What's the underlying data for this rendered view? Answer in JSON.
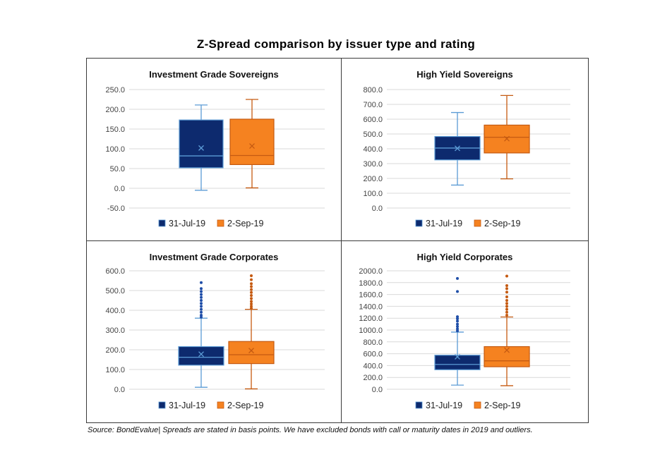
{
  "title": "Z-Spread comparison by issuer type and rating",
  "source_note": "Source: BondEvalue| Spreads are stated in basis points. We have excluded bonds with call or maturity dates in 2019 and outliers.",
  "colors": {
    "series1_fill": "#0d2a6e",
    "series1_line": "#5b9bd5",
    "series2_fill": "#f58220",
    "series2_line": "#c55a11"
  },
  "chart_data": [
    {
      "type": "box",
      "title": "Investment Grade Sovereigns",
      "ylim": [
        -50,
        250
      ],
      "yticks": [
        "250.0",
        "200.0",
        "150.0",
        "100.0",
        "50.0",
        "0.0",
        "-50.0"
      ],
      "ytick_values": [
        250,
        200,
        150,
        100,
        50,
        0,
        -50
      ],
      "legend": [
        "31-Jul-19",
        "2-Sep-19"
      ],
      "series": [
        {
          "name": "31-Jul-19",
          "min": -5,
          "q1": 52,
          "median": 82,
          "q3": 173,
          "max": 211,
          "mean": 102,
          "outliers": []
        },
        {
          "name": "2-Sep-19",
          "min": 1,
          "q1": 60,
          "median": 83,
          "q3": 175,
          "max": 225,
          "mean": 107,
          "outliers": []
        }
      ]
    },
    {
      "type": "box",
      "title": "High Yield Sovereigns",
      "ylim": [
        0,
        800
      ],
      "yticks": [
        "800.0",
        "700.0",
        "600.0",
        "500.0",
        "400.0",
        "300.0",
        "200.0",
        "100.0",
        "0.0"
      ],
      "ytick_values": [
        800,
        700,
        600,
        500,
        400,
        300,
        200,
        100,
        0
      ],
      "legend": [
        "31-Jul-19",
        "2-Sep-19"
      ],
      "series": [
        {
          "name": "31-Jul-19",
          "min": 155,
          "q1": 325,
          "median": 405,
          "q3": 483,
          "max": 645,
          "mean": 403,
          "outliers": []
        },
        {
          "name": "2-Sep-19",
          "min": 197,
          "q1": 372,
          "median": 478,
          "q3": 560,
          "max": 760,
          "mean": 468,
          "outliers": []
        }
      ]
    },
    {
      "type": "box",
      "title": "Investment Grade Corporates",
      "ylim": [
        0,
        600
      ],
      "yticks": [
        "600.0",
        "500.0",
        "400.0",
        "300.0",
        "200.0",
        "100.0",
        "0.0"
      ],
      "ytick_values": [
        600,
        500,
        400,
        300,
        200,
        100,
        0
      ],
      "legend": [
        "31-Jul-19",
        "2-Sep-19"
      ],
      "series": [
        {
          "name": "31-Jul-19",
          "min": 10,
          "q1": 122,
          "median": 162,
          "q3": 216,
          "max": 360,
          "mean": 178,
          "outliers": [
            365,
            375,
            390,
            405,
            420,
            435,
            450,
            465,
            480,
            495,
            510,
            540
          ]
        },
        {
          "name": "2-Sep-19",
          "min": 2,
          "q1": 130,
          "median": 175,
          "q3": 242,
          "max": 405,
          "mean": 196,
          "outliers": [
            410,
            420,
            432,
            445,
            460,
            475,
            490,
            505,
            520,
            535,
            555,
            575
          ]
        }
      ]
    },
    {
      "type": "box",
      "title": "High Yield Corporates",
      "ylim": [
        0,
        2000
      ],
      "yticks": [
        "2000.0",
        "1800.0",
        "1600.0",
        "1400.0",
        "1200.0",
        "1000.0",
        "800.0",
        "600.0",
        "400.0",
        "200.0",
        "0.0"
      ],
      "ytick_values": [
        2000,
        1800,
        1600,
        1400,
        1200,
        1000,
        800,
        600,
        400,
        200,
        0
      ],
      "legend": [
        "31-Jul-19",
        "2-Sep-19"
      ],
      "series": [
        {
          "name": "31-Jul-19",
          "min": 70,
          "q1": 330,
          "median": 420,
          "q3": 575,
          "max": 965,
          "mean": 548,
          "outliers": [
            985,
            1020,
            1060,
            1100,
            1150,
            1190,
            1225,
            1650,
            1870
          ]
        },
        {
          "name": "2-Sep-19",
          "min": 60,
          "q1": 380,
          "median": 480,
          "q3": 720,
          "max": 1220,
          "mean": 660,
          "outliers": [
            1250,
            1300,
            1350,
            1400,
            1450,
            1500,
            1560,
            1640,
            1700,
            1750,
            1910
          ]
        }
      ]
    }
  ]
}
